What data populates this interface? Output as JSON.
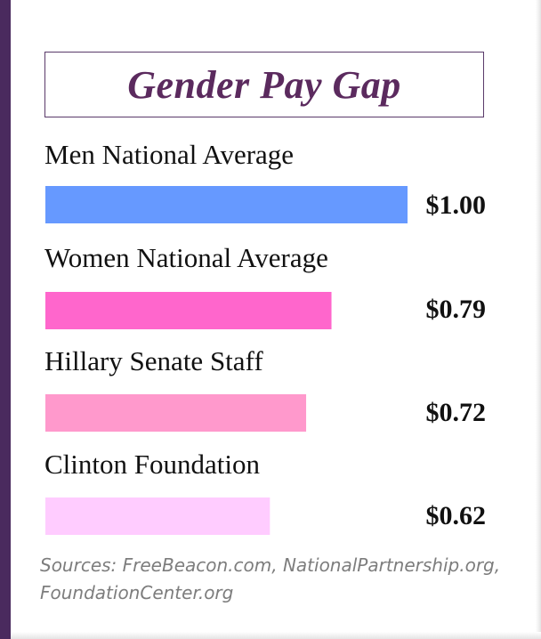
{
  "chart_data": {
    "type": "bar",
    "orientation": "horizontal",
    "title": "Gender Pay Gap",
    "categories": [
      "Men National Average",
      "Women National Average",
      "Hillary Senate Staff",
      "Clinton Foundation"
    ],
    "values": [
      1.0,
      0.79,
      0.72,
      0.62
    ],
    "value_labels": [
      "$1.00",
      "$0.79",
      "$0.72",
      "$0.62"
    ],
    "colors": [
      "#6699ff",
      "#ff66cc",
      "#ff99cc",
      "#ffccff"
    ],
    "xlim": [
      0,
      1.0
    ],
    "grid": false,
    "legend": "none"
  },
  "footer": {
    "sources": "Sources: FreeBeacon.com, NationalPartnership.org, FoundationCenter.org"
  },
  "colors": {
    "title": "#5b2a5e",
    "accent_stripe": "#4a2a5e"
  }
}
